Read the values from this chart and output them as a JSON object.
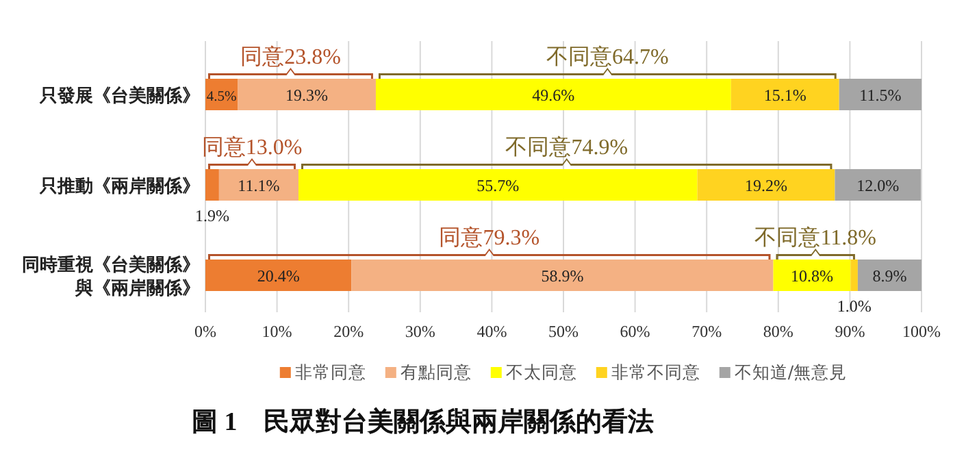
{
  "chart_data": {
    "type": "bar",
    "orientation": "horizontal",
    "stacked": true,
    "title": "圖 1　民眾對台美關係與兩岸關係的看法",
    "categories": [
      "只發展《台美關係》",
      "只推動《兩岸關係》",
      "同時重視《台美關係》與《兩岸關係》"
    ],
    "series": [
      {
        "name": "非常同意",
        "color": "#ed7d31",
        "values": [
          4.5,
          1.9,
          20.4
        ]
      },
      {
        "name": "有點同意",
        "color": "#f4b183",
        "values": [
          19.3,
          11.1,
          58.9
        ]
      },
      {
        "name": "不太同意",
        "color": "#ffff00",
        "values": [
          49.6,
          55.7,
          10.8
        ]
      },
      {
        "name": "非常不同意",
        "color": "#ffd320",
        "values": [
          15.1,
          19.2,
          1.0
        ]
      },
      {
        "name": "不知道/無意見",
        "color": "#a5a5a5",
        "values": [
          11.5,
          12.0,
          8.9
        ]
      }
    ],
    "xlim": [
      0,
      100
    ],
    "xticks": [
      {
        "value": 0,
        "label": "0%"
      },
      {
        "value": 10,
        "label": "10%"
      },
      {
        "value": 20,
        "label": "20%"
      },
      {
        "value": 30,
        "label": "30%"
      },
      {
        "value": 40,
        "label": "40%"
      },
      {
        "value": 50,
        "label": "50%"
      },
      {
        "value": 60,
        "label": "60%"
      },
      {
        "value": 70,
        "label": "70%"
      },
      {
        "value": 80,
        "label": "80%"
      },
      {
        "value": 90,
        "label": "90%"
      },
      {
        "value": 100,
        "label": "100%"
      }
    ],
    "value_labels": [
      [
        "4.5%",
        "1.9%",
        "20.4%"
      ],
      [
        "19.3%",
        "11.1%",
        "58.9%"
      ],
      [
        "49.6%",
        "55.7%",
        "10.8%"
      ],
      [
        "15.1%",
        "19.2%",
        "1.0%"
      ],
      [
        "11.5%",
        "12.0%",
        "8.9%"
      ]
    ],
    "annotations": [
      "同意23.8%",
      "不同意64.7%",
      "同意13.0%",
      "不同意74.9%",
      "同意79.3%",
      "不同意11.8%"
    ],
    "grid": "x",
    "legend": "bottom"
  }
}
